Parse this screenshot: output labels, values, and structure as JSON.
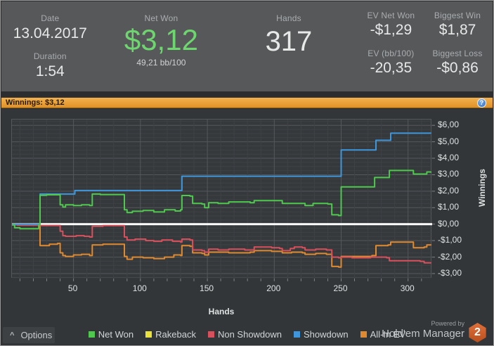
{
  "header": {
    "date_label": "Date",
    "date_value": "13.04.2017",
    "duration_label": "Duration",
    "duration_value": "1:54",
    "net_won_label": "Net Won",
    "net_won_value": "$3,12",
    "bb100_value": "49,21 bb/100",
    "hands_label": "Hands",
    "hands_value": "317",
    "ev_net_won_label": "EV Net Won",
    "ev_net_won_value": "-$1,29",
    "ev_bb100_label": "EV (bb/100)",
    "ev_bb100_value": "-20,35",
    "biggest_win_label": "Biggest Win",
    "biggest_win_value": "$1,87",
    "biggest_loss_label": "Biggest Loss",
    "biggest_loss_value": "-$0,86"
  },
  "winnings_bar": {
    "label": "Winnings: $3,12",
    "help_icon": "?",
    "bar_color": "#eda338"
  },
  "chart_data": {
    "type": "line",
    "title": "Winnings: $3,12",
    "xlabel": "Hands",
    "ylabel": "Winnings",
    "xlim": [
      4,
      318
    ],
    "ylim": [
      -3.3,
      6.35
    ],
    "x_ticks": [
      50,
      100,
      150,
      200,
      250,
      300
    ],
    "y_ticks": [
      {
        "v": 6,
        "label": "$6,00"
      },
      {
        "v": 5,
        "label": "$5,00"
      },
      {
        "v": 4,
        "label": "$4,00"
      },
      {
        "v": 3,
        "label": "$3,00"
      },
      {
        "v": 2,
        "label": "$2,00"
      },
      {
        "v": 1,
        "label": "$1,00"
      },
      {
        "v": 0,
        "label": "$0,00"
      },
      {
        "v": -1,
        "label": "-$1,00"
      },
      {
        "v": -2,
        "label": "-$2,00"
      },
      {
        "v": -3,
        "label": "-$3,00"
      }
    ],
    "grid": {
      "minor": "#3e4245",
      "major": "#54585b",
      "minor_x_step": 10,
      "minor_y_step": 0.25,
      "tick_color": "#7c8084"
    },
    "zero_line_color": "#ffffff",
    "legend_position": "bottom",
    "series": [
      {
        "name": "Net Won",
        "color": "#4ec94e",
        "points": [
          [
            4,
            -0.05
          ],
          [
            6,
            -0.22
          ],
          [
            10,
            -0.28
          ],
          [
            22,
            -0.28
          ],
          [
            24,
            -0.04
          ],
          [
            25,
            1.75
          ],
          [
            30,
            1.78
          ],
          [
            38,
            1.78
          ],
          [
            40,
            1.17
          ],
          [
            42,
            1.04
          ],
          [
            44,
            1.17
          ],
          [
            50,
            1.13
          ],
          [
            56,
            1.17
          ],
          [
            62,
            1.13
          ],
          [
            64,
            1.83
          ],
          [
            70,
            1.8
          ],
          [
            86,
            1.8
          ],
          [
            88,
            0.87
          ],
          [
            90,
            0.7
          ],
          [
            94,
            0.78
          ],
          [
            102,
            0.83
          ],
          [
            110,
            0.74
          ],
          [
            118,
            0.87
          ],
          [
            126,
            0.8
          ],
          [
            130,
            0.87
          ],
          [
            131,
            1.74
          ],
          [
            137,
            1.7
          ],
          [
            139,
            1.26
          ],
          [
            146,
            1.22
          ],
          [
            148,
            1.0
          ],
          [
            151,
            1.3
          ],
          [
            158,
            1.26
          ],
          [
            166,
            1.35
          ],
          [
            182,
            1.3
          ],
          [
            185,
            1.43
          ],
          [
            202,
            1.43
          ],
          [
            206,
            1.26
          ],
          [
            220,
            1.26
          ],
          [
            223,
            1.13
          ],
          [
            229,
            1.26
          ],
          [
            240,
            1.22
          ],
          [
            243,
            0.57
          ],
          [
            248,
            0.52
          ],
          [
            250,
            2.26
          ],
          [
            272,
            2.26
          ],
          [
            275,
            2.83
          ],
          [
            284,
            2.83
          ],
          [
            286,
            3.26
          ],
          [
            302,
            3.26
          ],
          [
            304,
            3.04
          ],
          [
            312,
            3.04
          ],
          [
            314,
            3.17
          ],
          [
            317,
            3.12
          ]
        ]
      },
      {
        "name": "Rakeback",
        "color": "#e8e23a",
        "points": [
          [
            4,
            0
          ],
          [
            317,
            0
          ]
        ]
      },
      {
        "name": "Non Showdown",
        "color": "#d9505c",
        "points": [
          [
            4,
            -0.02
          ],
          [
            8,
            -0.06
          ],
          [
            22,
            -0.06
          ],
          [
            25,
            -0.08
          ],
          [
            39,
            -0.08
          ],
          [
            40,
            -0.43
          ],
          [
            42,
            -0.7
          ],
          [
            44,
            -0.74
          ],
          [
            52,
            -0.7
          ],
          [
            58,
            -0.74
          ],
          [
            62,
            -0.78
          ],
          [
            64,
            -0.13
          ],
          [
            72,
            -0.09
          ],
          [
            86,
            -0.09
          ],
          [
            88,
            -0.78
          ],
          [
            90,
            -0.96
          ],
          [
            96,
            -0.91
          ],
          [
            104,
            -1.0
          ],
          [
            110,
            -1.04
          ],
          [
            116,
            -0.96
          ],
          [
            124,
            -1.04
          ],
          [
            130,
            -1.09
          ],
          [
            131,
            -0.91
          ],
          [
            137,
            -0.96
          ],
          [
            139,
            -1.57
          ],
          [
            146,
            -1.61
          ],
          [
            148,
            -1.7
          ],
          [
            151,
            -1.52
          ],
          [
            158,
            -1.57
          ],
          [
            166,
            -1.52
          ],
          [
            178,
            -1.57
          ],
          [
            185,
            -1.39
          ],
          [
            198,
            -1.43
          ],
          [
            204,
            -1.48
          ],
          [
            206,
            -1.61
          ],
          [
            212,
            -1.48
          ],
          [
            215,
            -1.39
          ],
          [
            221,
            -1.43
          ],
          [
            223,
            -1.57
          ],
          [
            231,
            -1.52
          ],
          [
            239,
            -1.57
          ],
          [
            243,
            -2.0
          ],
          [
            248,
            -2.04
          ],
          [
            250,
            -2.0
          ],
          [
            258,
            -2.04
          ],
          [
            272,
            -2.0
          ],
          [
            284,
            -2.04
          ],
          [
            286,
            -2.22
          ],
          [
            304,
            -2.22
          ],
          [
            309,
            -2.26
          ],
          [
            312,
            -2.35
          ],
          [
            317,
            -2.38
          ]
        ]
      },
      {
        "name": "Showdown",
        "color": "#3e97dd",
        "points": [
          [
            4,
            0
          ],
          [
            24,
            0
          ],
          [
            25,
            1.83
          ],
          [
            49,
            1.83
          ],
          [
            51,
            2.04
          ],
          [
            130,
            2.04
          ],
          [
            131,
            2.91
          ],
          [
            248,
            2.91
          ],
          [
            250,
            4.5
          ],
          [
            274,
            4.5
          ],
          [
            276,
            5.09
          ],
          [
            285,
            5.09
          ],
          [
            287,
            5.52
          ],
          [
            317,
            5.5
          ]
        ]
      },
      {
        "name": "All-In EV",
        "color": "#e0892f",
        "points": [
          [
            4,
            0
          ],
          [
            24,
            0
          ],
          [
            25,
            -1.3
          ],
          [
            32,
            -1.22
          ],
          [
            38,
            -1.17
          ],
          [
            40,
            -1.74
          ],
          [
            42,
            -1.91
          ],
          [
            44,
            -1.96
          ],
          [
            50,
            -1.87
          ],
          [
            56,
            -1.83
          ],
          [
            62,
            -1.91
          ],
          [
            64,
            -1.26
          ],
          [
            72,
            -1.22
          ],
          [
            86,
            -1.22
          ],
          [
            88,
            -1.96
          ],
          [
            90,
            -2.13
          ],
          [
            94,
            -2.0
          ],
          [
            102,
            -2.04
          ],
          [
            110,
            -2.09
          ],
          [
            118,
            -2.0
          ],
          [
            125,
            -1.87
          ],
          [
            130,
            -1.91
          ],
          [
            131,
            -1.3
          ],
          [
            137,
            -1.35
          ],
          [
            139,
            -1.74
          ],
          [
            146,
            -1.78
          ],
          [
            148,
            -1.87
          ],
          [
            151,
            -1.7
          ],
          [
            166,
            -1.74
          ],
          [
            182,
            -1.7
          ],
          [
            185,
            -1.61
          ],
          [
            198,
            -1.65
          ],
          [
            206,
            -1.74
          ],
          [
            213,
            -1.7
          ],
          [
            221,
            -1.74
          ],
          [
            223,
            -1.83
          ],
          [
            231,
            -1.78
          ],
          [
            239,
            -1.83
          ],
          [
            243,
            -2.57
          ],
          [
            248,
            -2.61
          ],
          [
            250,
            -1.96
          ],
          [
            273,
            -1.91
          ],
          [
            276,
            -1.3
          ],
          [
            285,
            -1.26
          ],
          [
            287,
            -1.09
          ],
          [
            302,
            -1.09
          ],
          [
            304,
            -1.43
          ],
          [
            312,
            -1.39
          ],
          [
            314,
            -1.26
          ],
          [
            317,
            -1.29
          ]
        ]
      }
    ],
    "draw_order_under_zero": [
      1
    ],
    "draw_order_over_zero": [
      4,
      2,
      3,
      0
    ]
  },
  "footer": {
    "options_label": "Options",
    "chevron_icon": "^",
    "powered_by": "Powered by",
    "brand": "Hold'em Manager",
    "badge": "2"
  }
}
